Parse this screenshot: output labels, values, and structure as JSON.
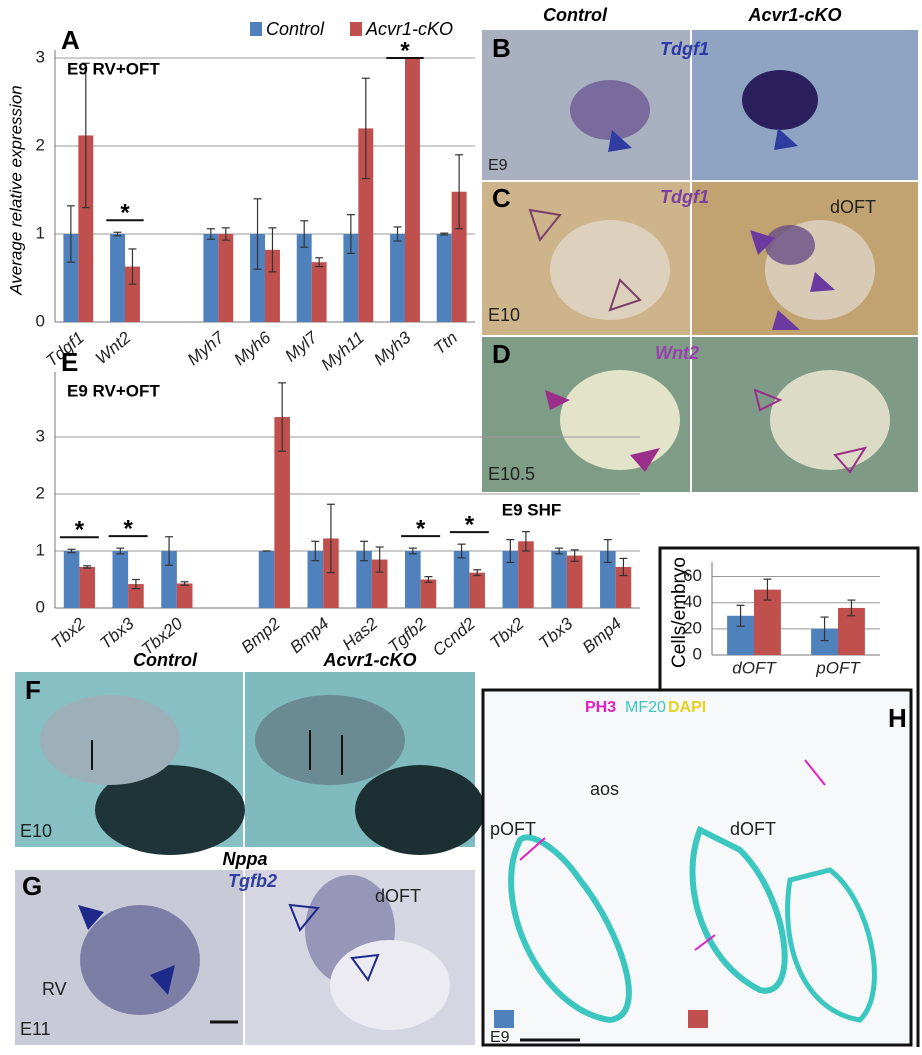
{
  "chart_data": [
    {
      "type": "bar",
      "panel": "A",
      "title": "E9 RV+OFT",
      "y_label": "Average relative expression",
      "categories": [
        "Tdgf1",
        "Wnt2",
        null,
        "Myh7",
        "Myh6",
        "Myl7",
        "Myh11",
        "Myh3",
        "Ttn"
      ],
      "significance": [
        null,
        "*",
        null,
        null,
        null,
        null,
        null,
        "*",
        null
      ],
      "series": [
        {
          "name": "Control",
          "color": "#4f81bd",
          "values": [
            1.0,
            1.0,
            null,
            1.0,
            1.0,
            1.0,
            1.0,
            1.0,
            1.0
          ],
          "errors": [
            0.32,
            0.02,
            null,
            0.06,
            0.4,
            0.15,
            0.22,
            0.08,
            0.01
          ]
        },
        {
          "name": "Acvr1-cKO",
          "color": "#c0504d",
          "values": [
            2.12,
            0.63,
            null,
            1.0,
            0.82,
            0.68,
            2.2,
            3.0,
            1.48
          ],
          "errors": [
            0.82,
            0.2,
            null,
            0.07,
            0.25,
            0.05,
            0.57,
            null,
            0.42
          ]
        }
      ],
      "ylim": [
        0,
        3
      ],
      "yticks": [
        0,
        1,
        2,
        3
      ],
      "grid": true,
      "legend": "top-right"
    },
    {
      "type": "bar",
      "panel": "E",
      "title": "E9 RV+OFT",
      "subtitle": "E9 SHF",
      "categories": [
        "Tbx2",
        "Tbx3",
        "Tbx20",
        null,
        "Bmp2",
        "Bmp4",
        "Has2",
        "Tgfb2",
        "Ccnd2",
        "Tbx2",
        "Tbx3",
        "Bmp4"
      ],
      "significance": [
        "*",
        "*",
        null,
        null,
        null,
        null,
        null,
        "*",
        "*",
        null,
        null,
        null
      ],
      "series": [
        {
          "color": "#4f81bd",
          "values": [
            1.0,
            1.0,
            1.0,
            null,
            1.0,
            1.0,
            1.0,
            1.0,
            1.0,
            1.0,
            1.0,
            1.0
          ],
          "errors": [
            0.03,
            0.05,
            0.25,
            null,
            0.0,
            0.17,
            0.17,
            0.05,
            0.12,
            0.2,
            0.05,
            0.2
          ]
        },
        {
          "color": "#c0504d",
          "values": [
            0.72,
            0.42,
            0.43,
            null,
            3.35,
            1.22,
            0.85,
            0.5,
            0.62,
            1.17,
            0.92,
            0.72
          ],
          "errors": [
            0.02,
            0.08,
            0.03,
            null,
            0.6,
            0.6,
            0.22,
            0.05,
            0.05,
            0.17,
            0.1,
            0.15
          ]
        }
      ],
      "ylim": [
        0,
        4
      ],
      "yticks": [
        0,
        1,
        2,
        3
      ],
      "grid": true
    },
    {
      "type": "bar",
      "y_label": "Cells/embryo",
      "categories": [
        "dOFT",
        "pOFT"
      ],
      "series": [
        {
          "color": "#4f81bd",
          "values": [
            30,
            20
          ],
          "errors": [
            8,
            9
          ]
        },
        {
          "color": "#c0504d",
          "values": [
            50,
            36
          ],
          "errors": [
            8,
            6
          ]
        }
      ],
      "ylim": [
        0,
        65
      ],
      "yticks": [
        0,
        20,
        40,
        60
      ],
      "grid": true
    }
  ],
  "panel_B": {
    "headers": [
      "Control",
      "Acvr1-cKO"
    ],
    "letter": "B",
    "gene": "Tdgf1",
    "stage": "E9"
  },
  "panel_C": {
    "letter": "C",
    "gene": "Tdgf1",
    "region": "dOFT",
    "stage": "E10"
  },
  "panel_D": {
    "letter": "D",
    "gene": "Wnt2",
    "stage": "E10.5"
  },
  "panel_F": {
    "headers": [
      "Control",
      "Acvr1-cKO"
    ],
    "letter": "F",
    "stage": "E10",
    "gene": "Nppa"
  },
  "panel_G": {
    "letter": "G",
    "gene": "Tgfb2",
    "region": "dOFT",
    "chamber": "RV",
    "stage": "E11"
  },
  "panel_H": {
    "letter": "H",
    "stains": [
      "PH3",
      "MF20",
      "DAPI"
    ],
    "labels": [
      "aos",
      "pOFT",
      "dOFT"
    ],
    "stage": "E9"
  }
}
